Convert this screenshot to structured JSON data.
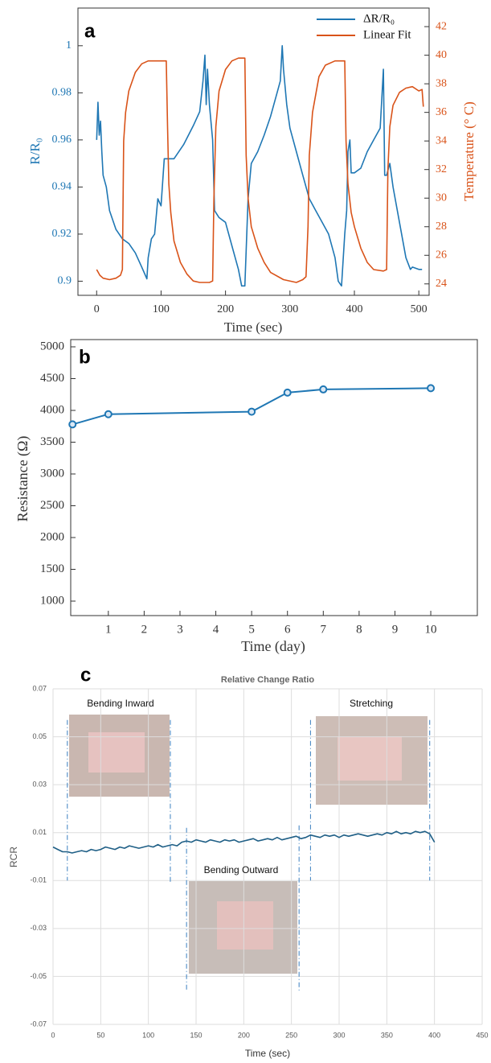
{
  "chart_data": [
    {
      "type": "line",
      "letter": "a",
      "x_label": "Time (sec)",
      "y_label": "R/R₀",
      "y2_label": "Temperature (° C)",
      "xlim": [
        -29,
        516
      ],
      "ylim": [
        0.894,
        1.016
      ],
      "y2lim": [
        23.2,
        43.3
      ],
      "xticks": [
        0,
        100,
        200,
        300,
        400,
        500
      ],
      "yticks": [
        0.9,
        0.92,
        0.94,
        0.96,
        0.98,
        1
      ],
      "y2ticks": [
        24,
        26,
        28,
        30,
        32,
        34,
        36,
        38,
        40,
        42
      ],
      "grid": false,
      "legend": "upper right",
      "series": [
        {
          "name": "ΔR/R₀",
          "color": "#1f77b4",
          "axis": "y",
          "x": [
            0,
            2,
            4,
            6,
            8,
            10,
            15,
            20,
            30,
            40,
            50,
            60,
            70,
            78,
            80,
            85,
            90,
            95,
            100,
            105,
            110,
            120,
            135,
            150,
            160,
            165,
            168,
            170,
            172,
            175,
            180,
            183,
            190,
            200,
            210,
            220,
            225,
            230,
            235,
            240,
            250,
            260,
            270,
            280,
            285,
            288,
            290,
            295,
            300,
            310,
            320,
            330,
            340,
            350,
            360,
            370,
            375,
            380,
            385,
            388,
            390,
            393,
            395,
            400,
            410,
            420,
            430,
            440,
            443,
            445,
            447,
            450,
            455,
            460,
            470,
            480,
            487,
            490,
            500,
            505
          ],
          "values": [
            0.96,
            0.976,
            0.962,
            0.968,
            0.955,
            0.945,
            0.94,
            0.93,
            0.922,
            0.918,
            0.916,
            0.912,
            0.906,
            0.901,
            0.91,
            0.918,
            0.92,
            0.935,
            0.932,
            0.952,
            0.952,
            0.952,
            0.958,
            0.966,
            0.972,
            0.985,
            0.996,
            0.975,
            0.99,
            0.975,
            0.96,
            0.93,
            0.927,
            0.925,
            0.915,
            0.905,
            0.898,
            0.898,
            0.935,
            0.95,
            0.955,
            0.962,
            0.97,
            0.98,
            0.985,
            1.0,
            0.99,
            0.975,
            0.965,
            0.955,
            0.945,
            0.935,
            0.93,
            0.925,
            0.92,
            0.91,
            0.9,
            0.898,
            0.92,
            0.93,
            0.955,
            0.96,
            0.946,
            0.946,
            0.948,
            0.955,
            0.96,
            0.965,
            0.98,
            0.99,
            0.945,
            0.945,
            0.95,
            0.94,
            0.925,
            0.91,
            0.905,
            0.906,
            0.905,
            0.905
          ]
        },
        {
          "name": "Linear Fit",
          "color": "#d95319",
          "axis": "y2",
          "x": [
            0,
            5,
            10,
            20,
            30,
            37,
            40,
            42,
            45,
            50,
            60,
            70,
            80,
            100,
            108,
            110,
            112,
            115,
            120,
            130,
            140,
            150,
            160,
            175,
            180,
            182,
            185,
            190,
            200,
            210,
            220,
            230,
            232,
            235,
            240,
            250,
            260,
            270,
            290,
            310,
            320,
            325,
            328,
            330,
            335,
            345,
            355,
            370,
            385,
            387,
            390,
            395,
            400,
            410,
            420,
            430,
            445,
            450,
            452,
            455,
            460,
            470,
            480,
            490,
            500,
            505,
            507
          ],
          "values": [
            25,
            24.6,
            24.4,
            24.3,
            24.4,
            24.6,
            25,
            34,
            36,
            37.5,
            38.8,
            39.4,
            39.6,
            39.6,
            39.6,
            35,
            31,
            29,
            27,
            25.5,
            24.7,
            24.2,
            24.1,
            24.1,
            24.2,
            30,
            35,
            37.5,
            39,
            39.6,
            39.8,
            39.8,
            33,
            30,
            28,
            26.5,
            25.5,
            24.8,
            24.3,
            24.1,
            24.3,
            24.5,
            28,
            33,
            36,
            38.5,
            39.3,
            39.6,
            39.6,
            34,
            31,
            29,
            28,
            26.5,
            25.5,
            25,
            24.9,
            25,
            32,
            35,
            36.5,
            37.4,
            37.7,
            37.8,
            37.5,
            37.6,
            36.4
          ]
        }
      ]
    },
    {
      "type": "line",
      "letter": "b",
      "x_label": "Time (day)",
      "y_label": "Resistance (Ω)",
      "xlim": [
        -0.05,
        11.3
      ],
      "ylim": [
        772,
        5114
      ],
      "xticks": [
        1,
        2,
        3,
        4,
        5,
        6,
        7,
        8,
        9,
        10
      ],
      "yticks": [
        1000,
        1500,
        2000,
        2500,
        3000,
        3500,
        4000,
        4500,
        5000
      ],
      "grid": false,
      "series": [
        {
          "color": "#1f77b4",
          "markers": true,
          "x": [
            0,
            1,
            5,
            6,
            7,
            10
          ],
          "values": [
            3780,
            3940,
            3980,
            4280,
            4330,
            4350
          ]
        }
      ]
    },
    {
      "type": "line",
      "letter": "c",
      "title": "Relative Change Ratio",
      "x_label": "Time (sec)",
      "y_label": "RCR",
      "xlim": [
        0,
        450
      ],
      "ylim": [
        -0.07,
        0.07
      ],
      "xticks": [
        0,
        50,
        100,
        150,
        200,
        250,
        300,
        350,
        400,
        450
      ],
      "yticks": [
        0.07,
        0.05,
        0.03,
        0.01,
        -0.01,
        -0.03,
        -0.05,
        -0.07
      ],
      "grid": true,
      "annotations": [
        "Bending Inward",
        "Bending Outward",
        "Stretching"
      ],
      "vlines": [
        15,
        123,
        140,
        258,
        270,
        395
      ],
      "series": [
        {
          "color": "#1f5f86",
          "x": [
            0,
            5,
            10,
            15,
            20,
            25,
            30,
            35,
            40,
            45,
            50,
            55,
            60,
            65,
            70,
            75,
            80,
            85,
            90,
            95,
            100,
            105,
            110,
            115,
            120,
            125,
            130,
            135,
            140,
            145,
            150,
            155,
            160,
            165,
            170,
            175,
            180,
            185,
            190,
            195,
            200,
            205,
            210,
            215,
            220,
            225,
            230,
            235,
            240,
            245,
            250,
            255,
            260,
            265,
            270,
            275,
            280,
            285,
            290,
            295,
            300,
            305,
            310,
            315,
            320,
            325,
            330,
            335,
            340,
            345,
            350,
            355,
            360,
            365,
            370,
            375,
            380,
            385,
            390,
            395,
            400
          ],
          "values": [
            0.004,
            0.003,
            0.002,
            0.002,
            0.0015,
            0.002,
            0.0025,
            0.002,
            0.003,
            0.0025,
            0.003,
            0.004,
            0.0035,
            0.003,
            0.004,
            0.0035,
            0.0045,
            0.004,
            0.0035,
            0.004,
            0.0045,
            0.004,
            0.005,
            0.004,
            0.0045,
            0.005,
            0.0045,
            0.006,
            0.0065,
            0.006,
            0.007,
            0.0065,
            0.006,
            0.007,
            0.0065,
            0.006,
            0.007,
            0.0065,
            0.007,
            0.006,
            0.0065,
            0.007,
            0.0075,
            0.0065,
            0.007,
            0.0075,
            0.007,
            0.008,
            0.007,
            0.0075,
            0.008,
            0.0085,
            0.0075,
            0.008,
            0.009,
            0.0085,
            0.008,
            0.009,
            0.0085,
            0.009,
            0.008,
            0.009,
            0.0085,
            0.009,
            0.0095,
            0.009,
            0.0085,
            0.009,
            0.0095,
            0.009,
            0.01,
            0.0095,
            0.0105,
            0.0095,
            0.01,
            0.0095,
            0.0105,
            0.01,
            0.0105,
            0.0095,
            0.006
          ]
        }
      ]
    }
  ]
}
